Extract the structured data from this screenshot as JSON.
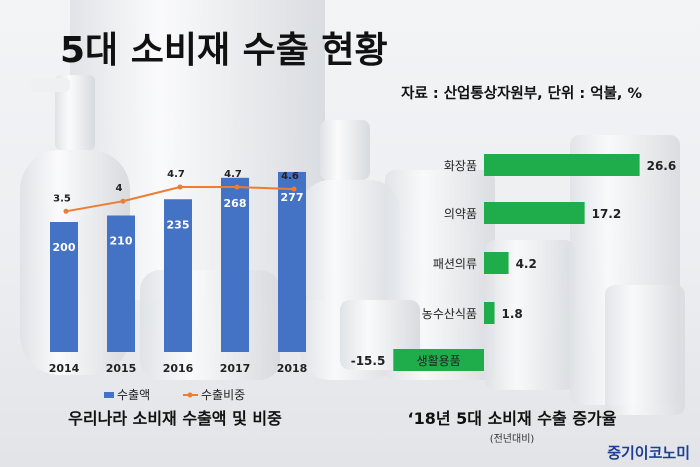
{
  "header": {
    "title": "5대 소비재 수출 현황",
    "source": "자료 : 산업통상자원부, 단위 : 억불, %"
  },
  "footer": {
    "brand": "중기이코노미"
  },
  "colors": {
    "bar": "#4472c4",
    "line": "#ed7d31",
    "growth_bar": "#1fac4b"
  },
  "chart_data": [
    {
      "type": "bar",
      "title": "우리나라 소비재 수출액 및 비중",
      "categories": [
        "2014",
        "2015",
        "2016",
        "2017",
        "2018"
      ],
      "series": [
        {
          "name": "수출액",
          "type": "bar",
          "values": [
            200,
            210,
            235,
            268,
            277
          ]
        },
        {
          "name": "수출비중",
          "type": "line",
          "values": [
            3.5,
            4,
            4.7,
            4.7,
            4.6
          ]
        }
      ],
      "value_labels_bar": [
        "200",
        "210",
        "235",
        "268",
        "277"
      ],
      "value_labels_line": [
        "3.5",
        "4",
        "4.7",
        "4.7",
        "4.6"
      ],
      "legend": "bottom",
      "grid": false
    },
    {
      "type": "bar",
      "orientation": "horizontal",
      "title": "‘18년 5대 소비재 수출 증가율",
      "subtitle": "(전년대비)",
      "categories": [
        "화장품",
        "의약품",
        "패션의류",
        "농수산식품",
        "생활용품"
      ],
      "values": [
        26.6,
        17.2,
        4.2,
        1.8,
        -15.5
      ],
      "value_labels": [
        "26.6",
        "17.2",
        "4.2",
        "1.8",
        "-15.5"
      ],
      "grid": false
    }
  ]
}
